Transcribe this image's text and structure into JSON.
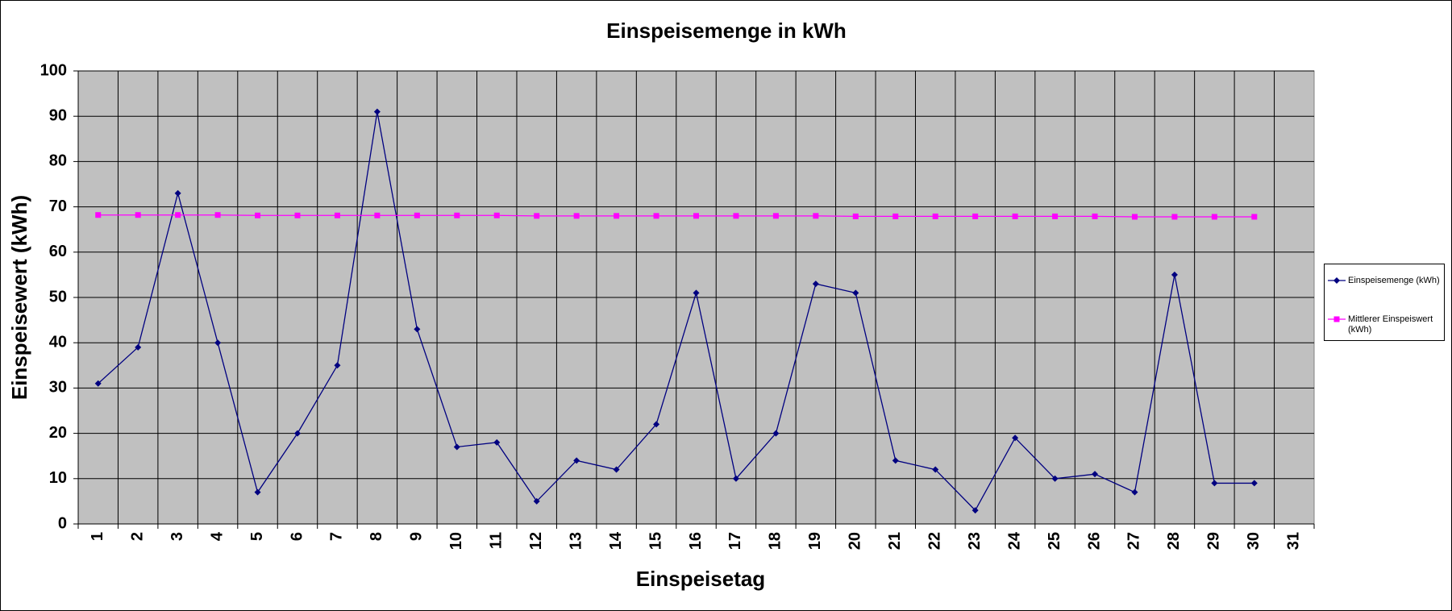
{
  "chart_data": {
    "type": "line",
    "title": "Einspeisemenge in kWh",
    "x_label": "Einspeisetag",
    "y_label": "Einspeisewert  (kWh)",
    "categories": [
      "1",
      "2",
      "3",
      "4",
      "5",
      "6",
      "7",
      "8",
      "9",
      "10",
      "11",
      "12",
      "13",
      "14",
      "15",
      "16",
      "17",
      "18",
      "19",
      "20",
      "21",
      "22",
      "23",
      "24",
      "25",
      "26",
      "27",
      "28",
      "29",
      "30",
      "31"
    ],
    "series": [
      {
        "name": "Einspeisemenge (kWh)",
        "color": "#000080",
        "marker": "diamond",
        "values": [
          31,
          39,
          73,
          40,
          7,
          20,
          35,
          91,
          43,
          17,
          18,
          5,
          14,
          12,
          22,
          51,
          10,
          20,
          53,
          51,
          14,
          12,
          3,
          19,
          10,
          11,
          7,
          55,
          9,
          9,
          null
        ]
      },
      {
        "name": "Mittlerer Einspeiswert (kWh)",
        "color": "#ff00ff",
        "marker": "square",
        "values": [
          68.2,
          68.2,
          68.2,
          68.2,
          68.1,
          68.1,
          68.1,
          68.1,
          68.1,
          68.1,
          68.1,
          68.0,
          68.0,
          68.0,
          68.0,
          68.0,
          68.0,
          68.0,
          68.0,
          67.9,
          67.9,
          67.9,
          67.9,
          67.9,
          67.9,
          67.9,
          67.8,
          67.8,
          67.8,
          67.8,
          null
        ]
      }
    ],
    "ylim": [
      0,
      100
    ],
    "yticks": [
      0,
      10,
      20,
      30,
      40,
      50,
      60,
      70,
      80,
      90,
      100
    ],
    "grid": true,
    "legend": "right"
  }
}
